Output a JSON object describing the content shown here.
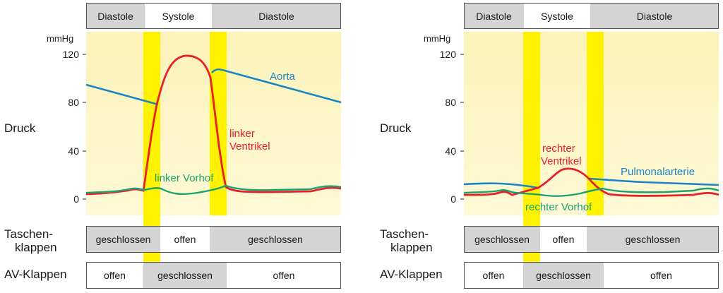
{
  "left": {
    "phases": [
      "Diastole",
      "Systole",
      "Diastole"
    ],
    "unit": "mmHg",
    "ticks": [
      "120",
      "80",
      "40",
      "0"
    ],
    "druck_label": "Druck",
    "curve_labels": {
      "aorta": "Aorta",
      "ventricle_1": "linker",
      "ventricle_2": "Ventrikel",
      "atrium": "linker Vorhof"
    },
    "taschen_label_1": "Taschen-",
    "taschen_label_2": "klappen",
    "taschen": [
      "geschlossen",
      "offen",
      "geschlossen"
    ],
    "av_label": "AV-Klappen",
    "av": [
      "offen",
      "geschlossen",
      "offen"
    ]
  },
  "right": {
    "phases": [
      "Diastole",
      "Systole",
      "Diastole"
    ],
    "unit": "mmHg",
    "ticks": [
      "120",
      "80",
      "40",
      "0"
    ],
    "druck_label": "Druck",
    "curve_labels": {
      "ventricle_1": "rechter",
      "ventricle_2": "Ventrikel",
      "artery": "Pulmonalarterie",
      "atrium": "rechter Vorhof"
    },
    "taschen_label_1": "Taschen-",
    "taschen_label_2": "klappen",
    "taschen": [
      "geschlossen",
      "offen",
      "geschlossen"
    ],
    "av_label": "AV-Klappen",
    "av": [
      "offen",
      "geschlossen",
      "offen"
    ]
  },
  "colors": {
    "background_panel": "#fdf7c4",
    "yellow_band": "#fff200",
    "ventricle": "#e8202a",
    "aorta": "#1a86c8",
    "atrium": "#1aa36e",
    "gray_cell": "#d4d4d4"
  }
}
